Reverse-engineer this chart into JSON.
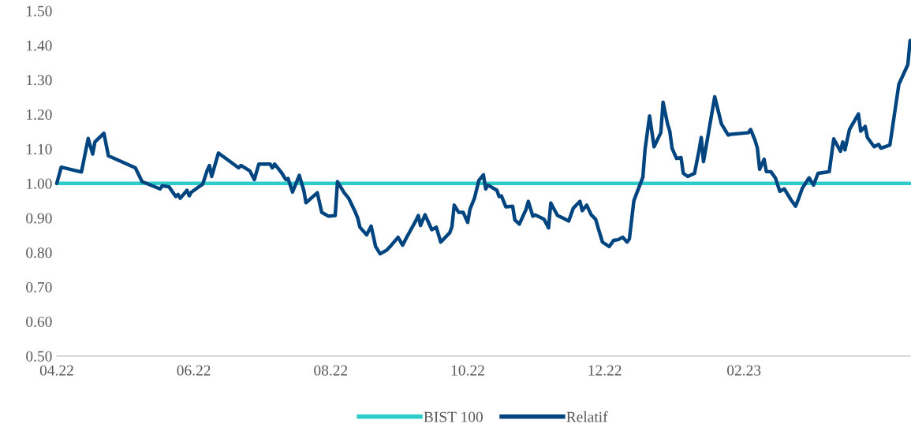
{
  "chart_data": {
    "type": "line",
    "xlim": [
      "2022-04-01",
      "2023-04-16"
    ],
    "xticks": [
      {
        "value": "2022-04-01",
        "label": "04.22"
      },
      {
        "value": "2022-06-01",
        "label": "06.22"
      },
      {
        "value": "2022-08-01",
        "label": "08.22"
      },
      {
        "value": "2022-10-01",
        "label": "10.22"
      },
      {
        "value": "2022-12-01",
        "label": "12.22"
      },
      {
        "value": "2023-02-01",
        "label": "02.23"
      }
    ],
    "ylim": [
      0.5,
      1.5
    ],
    "yticks": [
      {
        "value": 0.5,
        "label": "0.50"
      },
      {
        "value": 0.6,
        "label": "0.60"
      },
      {
        "value": 0.7,
        "label": "0.70"
      },
      {
        "value": 0.8,
        "label": "0.80"
      },
      {
        "value": 0.9,
        "label": "0.90"
      },
      {
        "value": 1.0,
        "label": "1.00"
      },
      {
        "value": 1.1,
        "label": "1.10"
      },
      {
        "value": 1.2,
        "label": "1.20"
      },
      {
        "value": 1.3,
        "label": "1.30"
      },
      {
        "value": 1.4,
        "label": "1.40"
      },
      {
        "value": 1.5,
        "label": "1.50"
      }
    ],
    "grid": false,
    "legend": "bottom",
    "marker": "none",
    "line_style": "solid",
    "series": [
      {
        "name": "BIST 100",
        "color": "#2ecbcb",
        "x": [
          "2022-04-01",
          "2023-04-16"
        ],
        "values": [
          1.0,
          1.0
        ]
      },
      {
        "name": "Relatif",
        "color": "#00457f",
        "x": [
          "2022-04-01",
          "2022-04-03",
          "2022-04-12",
          "2022-04-15",
          "2022-04-17",
          "2022-04-18",
          "2022-04-22",
          "2022-04-24",
          "2022-05-06",
          "2022-05-09",
          "2022-05-17",
          "2022-05-18",
          "2022-05-21",
          "2022-05-24",
          "2022-05-25",
          "2022-05-26",
          "2022-05-29",
          "2022-05-30",
          "2022-05-31",
          "2022-06-02",
          "2022-06-05",
          "2022-06-07",
          "2022-06-08",
          "2022-06-09",
          "2022-06-12",
          "2022-06-21",
          "2022-06-22",
          "2022-06-26",
          "2022-06-28",
          "2022-06-30",
          "2022-07-05",
          "2022-07-06",
          "2022-07-07",
          "2022-07-10",
          "2022-07-12",
          "2022-07-13",
          "2022-07-15",
          "2022-07-18",
          "2022-07-20",
          "2022-07-21",
          "2022-07-26",
          "2022-07-28",
          "2022-07-31",
          "2022-08-03",
          "2022-08-04",
          "2022-08-07",
          "2022-08-09",
          "2022-08-12",
          "2022-08-13",
          "2022-08-14",
          "2022-08-17",
          "2022-08-19",
          "2022-08-21",
          "2022-08-23",
          "2022-08-26",
          "2022-08-28",
          "2022-08-31",
          "2022-09-02",
          "2022-09-04",
          "2022-09-08",
          "2022-09-09",
          "2022-09-10",
          "2022-09-12",
          "2022-09-15",
          "2022-09-17",
          "2022-09-19",
          "2022-09-23",
          "2022-09-24",
          "2022-09-25",
          "2022-09-27",
          "2022-09-29",
          "2022-10-01",
          "2022-10-02",
          "2022-10-04",
          "2022-10-06",
          "2022-10-08",
          "2022-10-09",
          "2022-10-10",
          "2022-10-14",
          "2022-10-15",
          "2022-10-16",
          "2022-10-18",
          "2022-10-21",
          "2022-10-22",
          "2022-10-24",
          "2022-10-27",
          "2022-10-28",
          "2022-10-30",
          "2022-10-31",
          "2022-11-04",
          "2022-11-06",
          "2022-11-07",
          "2022-11-10",
          "2022-11-13",
          "2022-11-15",
          "2022-11-17",
          "2022-11-20",
          "2022-11-21",
          "2022-11-23",
          "2022-11-25",
          "2022-11-27",
          "2022-11-28",
          "2022-11-30",
          "2022-12-03",
          "2022-12-05",
          "2022-12-07",
          "2022-12-09",
          "2022-12-11",
          "2022-12-12",
          "2022-12-14",
          "2022-12-18",
          "2022-12-19",
          "2022-12-21",
          "2022-12-23",
          "2022-12-26",
          "2022-12-27",
          "2022-12-29",
          "2022-12-30",
          "2022-12-31",
          "2023-01-02",
          "2023-01-04",
          "2023-01-05",
          "2023-01-07",
          "2023-01-10",
          "2023-01-12",
          "2023-01-13",
          "2023-01-14",
          "2023-01-19",
          "2023-01-22",
          "2023-01-25",
          "2023-01-26",
          "2023-02-03",
          "2023-02-04",
          "2023-02-06",
          "2023-02-07",
          "2023-02-08",
          "2023-02-10",
          "2023-02-11",
          "2023-02-13",
          "2023-02-15",
          "2023-02-17",
          "2023-02-19",
          "2023-02-22",
          "2023-02-24",
          "2023-02-25",
          "2023-02-27",
          "2023-03-02",
          "2023-03-04",
          "2023-03-06",
          "2023-03-09",
          "2023-03-11",
          "2023-03-13",
          "2023-03-16",
          "2023-03-17",
          "2023-03-18",
          "2023-03-20",
          "2023-03-24",
          "2023-03-25",
          "2023-03-27",
          "2023-03-28",
          "2023-03-31",
          "2023-04-02",
          "2023-04-03",
          "2023-04-07",
          "2023-04-11",
          "2023-04-15",
          "2023-04-16"
        ],
        "values": [
          1.0,
          1.047,
          1.033,
          1.13,
          1.085,
          1.12,
          1.145,
          1.08,
          1.045,
          1.005,
          0.984,
          0.993,
          0.99,
          0.962,
          0.968,
          0.957,
          0.98,
          0.964,
          0.975,
          0.984,
          0.998,
          1.038,
          1.052,
          1.02,
          1.088,
          1.045,
          1.052,
          1.036,
          1.011,
          1.056,
          1.056,
          1.045,
          1.056,
          1.032,
          1.011,
          1.014,
          0.975,
          1.023,
          0.98,
          0.944,
          0.973,
          0.916,
          0.905,
          0.907,
          1.005,
          0.973,
          0.957,
          0.916,
          0.9,
          0.873,
          0.851,
          0.876,
          0.817,
          0.796,
          0.807,
          0.821,
          0.844,
          0.821,
          0.846,
          0.893,
          0.907,
          0.878,
          0.909,
          0.866,
          0.873,
          0.83,
          0.857,
          0.875,
          0.937,
          0.916,
          0.916,
          0.887,
          0.925,
          0.957,
          1.009,
          1.025,
          0.984,
          0.995,
          0.98,
          0.962,
          0.964,
          0.932,
          0.934,
          0.894,
          0.882,
          0.925,
          0.948,
          0.905,
          0.909,
          0.896,
          0.871,
          0.943,
          0.907,
          0.898,
          0.891,
          0.928,
          0.948,
          0.921,
          0.937,
          0.909,
          0.896,
          0.873,
          0.83,
          0.817,
          0.835,
          0.837,
          0.844,
          0.83,
          0.839,
          0.95,
          1.018,
          1.1,
          1.195,
          1.106,
          1.147,
          1.235,
          1.172,
          1.151,
          1.102,
          1.072,
          1.075,
          1.029,
          1.02,
          1.029,
          1.095,
          1.133,
          1.063,
          1.251,
          1.172,
          1.14,
          1.142,
          1.147,
          1.156,
          1.124,
          1.102,
          1.041,
          1.07,
          1.034,
          1.034,
          1.016,
          0.977,
          0.984,
          0.952,
          0.934,
          0.95,
          0.986,
          1.016,
          0.995,
          1.029,
          1.032,
          1.034,
          1.129,
          1.093,
          1.12,
          1.097,
          1.156,
          1.201,
          1.151,
          1.165,
          1.133,
          1.106,
          1.113,
          1.102,
          1.111,
          1.287,
          1.344,
          1.414
        ]
      }
    ]
  }
}
